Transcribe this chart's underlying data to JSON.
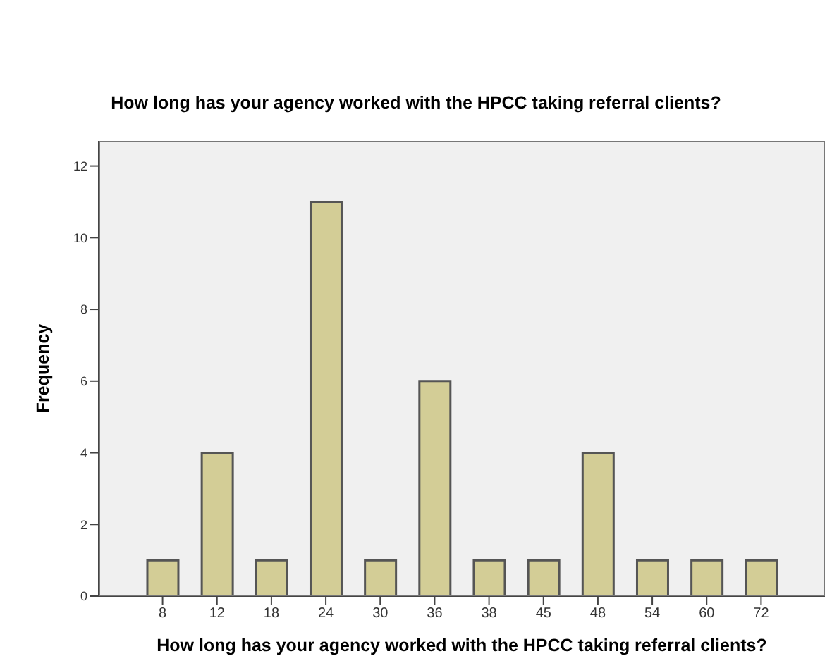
{
  "chart_data": {
    "type": "bar",
    "title": "How long has your agency worked with the HPCC taking referral clients?",
    "xlabel": "How long has your agency worked with the HPCC taking referral clients?",
    "ylabel": "Frequency",
    "categories": [
      "8",
      "12",
      "18",
      "24",
      "30",
      "36",
      "38",
      "45",
      "48",
      "54",
      "60",
      "72"
    ],
    "values": [
      1,
      4,
      1,
      11,
      1,
      6,
      1,
      1,
      4,
      1,
      1,
      1
    ],
    "color": "#d3cd96",
    "ylim": [
      0,
      12.7
    ],
    "yticks": [
      0,
      2,
      4,
      6,
      8,
      10,
      12
    ],
    "grid": false,
    "legend": false
  }
}
